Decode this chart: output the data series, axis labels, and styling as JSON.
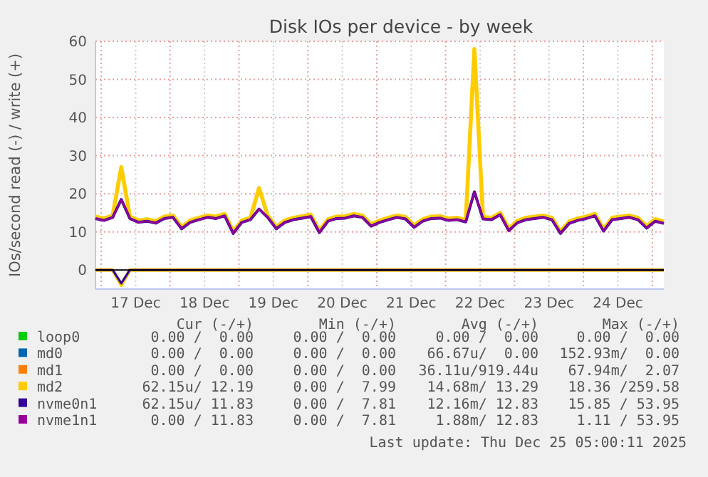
{
  "chart_data": {
    "type": "line",
    "title": "Disk IOs per device - by week",
    "ylabel": "IOs/second read (-) / write (+)",
    "xlim": [
      "2025-12-16T22:00",
      "2025-12-25T04:00"
    ],
    "xticks": [
      {
        "value": "2025-12-17T00:00",
        "label": null
      },
      {
        "value": "2025-12-17T12:00",
        "label": "17 Dec"
      },
      {
        "value": "2025-12-18T00:00",
        "label": null
      },
      {
        "value": "2025-12-18T12:00",
        "label": "18 Dec"
      },
      {
        "value": "2025-12-19T00:00",
        "label": null
      },
      {
        "value": "2025-12-19T12:00",
        "label": "19 Dec"
      },
      {
        "value": "2025-12-20T00:00",
        "label": null
      },
      {
        "value": "2025-12-20T12:00",
        "label": "20 Dec"
      },
      {
        "value": "2025-12-21T00:00",
        "label": null
      },
      {
        "value": "2025-12-21T12:00",
        "label": "21 Dec"
      },
      {
        "value": "2025-12-22T00:00",
        "label": null
      },
      {
        "value": "2025-12-22T12:00",
        "label": "22 Dec"
      },
      {
        "value": "2025-12-23T00:00",
        "label": null
      },
      {
        "value": "2025-12-23T12:00",
        "label": "23 Dec"
      },
      {
        "value": "2025-12-24T00:00",
        "label": null
      },
      {
        "value": "2025-12-24T12:00",
        "label": "24 Dec"
      },
      {
        "value": "2025-12-25T00:00",
        "label": null
      }
    ],
    "ylim": [
      -5,
      60
    ],
    "yticks": [
      0,
      10,
      20,
      30,
      40,
      50,
      60
    ],
    "grid": true,
    "legend": "bottom",
    "x": [
      "2025-12-16T22:00",
      "2025-12-17T01:00",
      "2025-12-17T04:00",
      "2025-12-17T07:00",
      "2025-12-17T10:00",
      "2025-12-17T13:00",
      "2025-12-17T16:00",
      "2025-12-17T19:00",
      "2025-12-17T22:00",
      "2025-12-18T01:00",
      "2025-12-18T04:00",
      "2025-12-18T07:00",
      "2025-12-18T10:00",
      "2025-12-18T13:00",
      "2025-12-18T16:00",
      "2025-12-18T19:00",
      "2025-12-18T22:00",
      "2025-12-19T01:00",
      "2025-12-19T04:00",
      "2025-12-19T07:00",
      "2025-12-19T10:00",
      "2025-12-19T13:00",
      "2025-12-19T16:00",
      "2025-12-19T19:00",
      "2025-12-19T22:00",
      "2025-12-20T01:00",
      "2025-12-20T04:00",
      "2025-12-20T07:00",
      "2025-12-20T10:00",
      "2025-12-20T13:00",
      "2025-12-20T16:00",
      "2025-12-20T19:00",
      "2025-12-20T22:00",
      "2025-12-21T01:00",
      "2025-12-21T04:00",
      "2025-12-21T07:00",
      "2025-12-21T10:00",
      "2025-12-21T13:00",
      "2025-12-21T16:00",
      "2025-12-21T19:00",
      "2025-12-21T22:00",
      "2025-12-22T01:00",
      "2025-12-22T04:00",
      "2025-12-22T07:00",
      "2025-12-22T10:00",
      "2025-12-22T13:00",
      "2025-12-22T16:00",
      "2025-12-22T19:00",
      "2025-12-22T22:00",
      "2025-12-23T01:00",
      "2025-12-23T04:00",
      "2025-12-23T07:00",
      "2025-12-23T10:00",
      "2025-12-23T13:00",
      "2025-12-23T16:00",
      "2025-12-23T19:00",
      "2025-12-23T22:00",
      "2025-12-24T01:00",
      "2025-12-24T04:00",
      "2025-12-24T07:00",
      "2025-12-24T10:00",
      "2025-12-24T13:00",
      "2025-12-24T16:00",
      "2025-12-24T19:00",
      "2025-12-24T22:00",
      "2025-12-25T01:00",
      "2025-12-25T04:00"
    ],
    "series": [
      {
        "name": "loop0",
        "color": "#00cc00",
        "values": [
          null,
          null,
          null,
          null,
          null,
          null,
          null,
          null,
          null,
          null,
          null,
          null,
          null,
          null,
          null,
          null,
          null,
          null,
          null,
          null,
          null,
          null,
          null,
          null,
          null,
          null,
          null,
          null,
          null,
          null,
          null,
          null,
          null,
          null,
          null,
          null,
          null,
          null,
          null,
          null,
          null,
          null,
          null,
          null,
          null,
          null,
          null,
          null,
          null,
          null,
          null,
          null,
          null,
          null,
          null,
          null,
          null,
          null,
          null,
          null,
          null,
          null,
          null,
          null,
          null,
          null,
          null
        ]
      },
      {
        "name": "md0",
        "color": "#0066b3",
        "values": [
          null,
          null,
          null,
          null,
          null,
          null,
          null,
          null,
          null,
          null,
          null,
          null,
          null,
          null,
          null,
          null,
          null,
          null,
          null,
          null,
          null,
          null,
          null,
          null,
          null,
          null,
          null,
          null,
          null,
          null,
          null,
          null,
          null,
          null,
          null,
          null,
          null,
          null,
          null,
          null,
          null,
          null,
          null,
          null,
          null,
          null,
          null,
          null,
          null,
          null,
          null,
          null,
          null,
          null,
          null,
          null,
          null,
          null,
          null,
          null,
          null,
          null,
          null,
          null,
          null,
          null,
          null
        ]
      },
      {
        "name": "md1",
        "color": "#ff8000",
        "values": [
          null,
          null,
          null,
          null,
          null,
          null,
          null,
          null,
          null,
          null,
          null,
          null,
          null,
          null,
          null,
          null,
          null,
          null,
          null,
          null,
          null,
          null,
          null,
          null,
          null,
          null,
          null,
          null,
          null,
          null,
          null,
          null,
          null,
          null,
          null,
          null,
          null,
          null,
          null,
          null,
          null,
          null,
          null,
          null,
          null,
          null,
          null,
          null,
          null,
          null,
          null,
          null,
          null,
          null,
          null,
          null,
          null,
          null,
          null,
          null,
          null,
          null,
          null,
          null,
          null,
          null,
          null
        ]
      },
      {
        "name": "md2",
        "color": "#ffcc00",
        "values": [
          14,
          13.5,
          14.3,
          27,
          14,
          13,
          13.3,
          12.8,
          14,
          14.3,
          11.3,
          13,
          13.7,
          14.3,
          14,
          14.7,
          10.1,
          13,
          13.7,
          21.5,
          14.3,
          11.3,
          13,
          13.7,
          14.1,
          14.5,
          10.3,
          13.3,
          14,
          14.1,
          14.7,
          14.3,
          12,
          13,
          13.7,
          14.3,
          13.9,
          11.7,
          13.3,
          14,
          14.1,
          13.5,
          13.7,
          13.1,
          58,
          13.9,
          13.7,
          15,
          10.8,
          12.9,
          13.7,
          14,
          14.3,
          13.7,
          10.1,
          12.7,
          13.5,
          14,
          14.7,
          10.7,
          13.7,
          14,
          14.3,
          13.7,
          11.5,
          13.3,
          12.7
        ]
      },
      {
        "color": "#ffcc00",
        "x": [
          "2025-12-16T22:00",
          "2025-12-17T04:00",
          "2025-12-17T07:00",
          "2025-12-17T10:00",
          "2025-12-25T04:00"
        ],
        "values": [
          0,
          0,
          -4,
          0,
          0
        ]
      },
      {
        "name": "nvme0n1",
        "color": "#330099",
        "values": [
          13.5,
          13,
          13.8,
          18.5,
          13.5,
          12.5,
          12.8,
          12.3,
          13.5,
          13.8,
          10.8,
          12.5,
          13.2,
          13.8,
          13.5,
          14.2,
          9.6,
          12.5,
          13.2,
          16,
          13.8,
          10.8,
          12.5,
          13.2,
          13.6,
          14,
          9.8,
          12.8,
          13.5,
          13.6,
          14.2,
          13.8,
          11.5,
          12.5,
          13.2,
          13.8,
          13.4,
          11.2,
          12.8,
          13.5,
          13.6,
          13,
          13.2,
          12.6,
          20.5,
          13.4,
          13.2,
          14.5,
          10.3,
          12.4,
          13.2,
          13.5,
          13.8,
          13.2,
          9.6,
          12.2,
          13,
          13.5,
          14.2,
          10.2,
          13.2,
          13.5,
          13.8,
          13.2,
          11,
          12.8,
          12.2
        ]
      },
      {
        "color": "#330099",
        "x": [
          "2025-12-16T22:00",
          "2025-12-17T04:00",
          "2025-12-17T07:00",
          "2025-12-17T10:00",
          "2025-12-25T04:00"
        ],
        "values": [
          0,
          0,
          -3.5,
          0,
          0
        ]
      },
      {
        "name": "nvme1n1",
        "color": "#990099",
        "values": [
          13.5,
          13,
          13.8,
          18.5,
          13.5,
          12.5,
          12.8,
          12.3,
          13.5,
          13.8,
          10.8,
          12.5,
          13.2,
          13.8,
          13.5,
          14.2,
          9.6,
          12.5,
          13.2,
          16,
          13.8,
          10.8,
          12.5,
          13.2,
          13.6,
          14,
          9.8,
          12.8,
          13.5,
          13.6,
          14.2,
          13.8,
          11.5,
          12.5,
          13.2,
          13.8,
          13.4,
          11.2,
          12.8,
          13.5,
          13.6,
          13,
          13.2,
          12.6,
          20.5,
          13.4,
          13.2,
          14.5,
          10.3,
          12.4,
          13.2,
          13.5,
          13.8,
          13.2,
          9.6,
          12.2,
          13,
          13.5,
          14.2,
          10.2,
          13.2,
          13.5,
          13.8,
          13.2,
          11,
          12.8,
          12.2
        ]
      }
    ],
    "annotations": [
      "Cur (-/+)",
      "Min (-/+)",
      "Avg (-/+)",
      "Max (-/+)",
      "0.00 /  0.00",
      "0.00 /  0.00",
      "0.00 /  0.00",
      "0.00 /  0.00",
      "0.00 /  0.00",
      "0.00 /  0.00",
      "66.67u/  0.00",
      "152.93m/  0.00",
      "0.00 /  0.00",
      "0.00 /  0.00",
      "36.11u/919.44u",
      "67.94m/  2.07",
      "62.15u/ 12.19",
      "0.00 /  7.99",
      "14.68m/ 13.29",
      "18.36 /259.58",
      "62.15u/ 11.83",
      "0.00 /  7.81",
      "12.16m/ 12.83",
      "15.85 / 53.95",
      "0.00 / 11.83",
      "0.00 /  7.81",
      "1.88m/ 12.83",
      "1.11 / 53.95",
      "Last update: Thu Dec 25 05:00:11 2025"
    ]
  }
}
